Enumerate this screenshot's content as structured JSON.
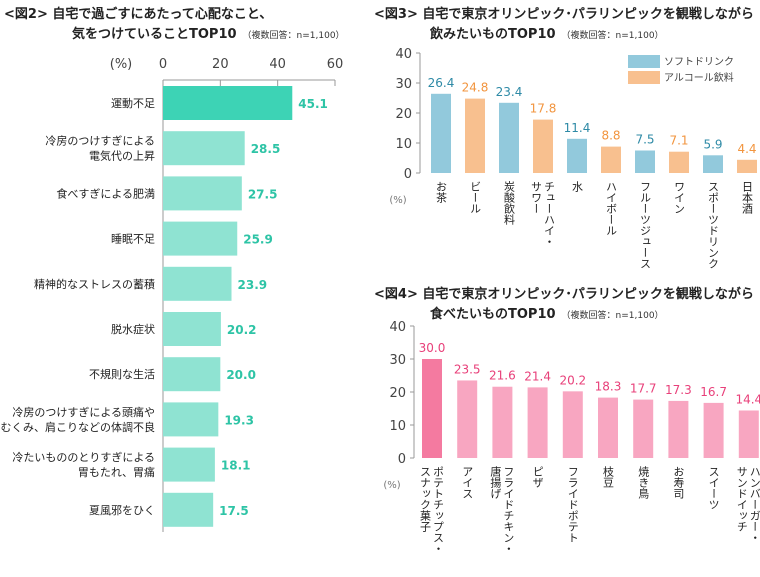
{
  "chart_data": [
    {
      "type": "bar",
      "orientation": "horizontal",
      "title": "<図2> 自宅で過ごすにあたって心配なこと、",
      "title2": "気をつけていることTOP10",
      "subtitle": "（複数回答：n=1,100）",
      "unit": "(%)",
      "xlim": [
        0,
        60
      ],
      "ticks": [
        "0",
        "20",
        "40",
        "60"
      ],
      "categories": [
        "運動不足",
        "冷房のつけすぎによる\n電気代の上昇",
        "食べすぎによる肥満",
        "睡眠不足",
        "精神的なストレスの蓄積",
        "脱水症状",
        "不規則な生活",
        "冷房のつけすぎによる頭痛や\nむくみ、肩こりなどの体調不良",
        "冷たいもののとりすぎによる\n胃もたれ、胃痛",
        "夏風邪をひく"
      ],
      "values": [
        45.1,
        28.5,
        27.5,
        25.9,
        23.9,
        20.2,
        20.0,
        19.3,
        18.1,
        17.5
      ],
      "value_labels": [
        "45.1",
        "28.5",
        "27.5",
        "25.9",
        "23.9",
        "20.2",
        "20.0",
        "19.3",
        "18.1",
        "17.5"
      ],
      "colors": {
        "highlight": "#3dd3b5",
        "bar": "#8fe3d2",
        "label": "#2ec4a6"
      }
    },
    {
      "type": "bar",
      "title": "<図3> 自宅で東京オリンピック･パラリンピックを観戦しながら",
      "title2": "飲みたいものTOP10",
      "subtitle": "（複数回答：n=1,100）",
      "unit": "(%)",
      "ylim": [
        0,
        40
      ],
      "ticks": [
        "0",
        "10",
        "20",
        "30",
        "40"
      ],
      "categories": [
        "お茶",
        "ビール",
        "炭酸飲料",
        "チューハイ・サワー",
        "水",
        "ハイボール",
        "フルーツジュース",
        "ワイン",
        "スポーツドリンク",
        "日本酒"
      ],
      "values": [
        26.4,
        24.8,
        23.4,
        17.8,
        11.4,
        8.8,
        7.5,
        7.1,
        5.9,
        4.4
      ],
      "value_labels": [
        "26.4",
        "24.8",
        "23.4",
        "17.8",
        "11.4",
        "8.8",
        "7.5",
        "7.1",
        "5.9",
        "4.4"
      ],
      "groups": [
        0,
        1,
        0,
        1,
        0,
        1,
        0,
        1,
        0,
        1
      ],
      "series": [
        {
          "name": "ソフトドリンク",
          "color": "#92c9dc",
          "label_color": "#2e8aa6"
        },
        {
          "name": "アルコール飲料",
          "color": "#f8c08f",
          "label_color": "#f2953f"
        }
      ],
      "legend": "top-right"
    },
    {
      "type": "bar",
      "title": "<図4> 自宅で東京オリンピック･パラリンピックを観戦しながら",
      "title2": "食べたいものTOP10",
      "subtitle": "（複数回答：n=1,100）",
      "unit": "(%)",
      "ylim": [
        0,
        40
      ],
      "ticks": [
        "0",
        "10",
        "20",
        "30",
        "40"
      ],
      "categories": [
        "ポテトチップス・スナック菓子",
        "アイス",
        "フライドチキン・唐揚げ",
        "ピザ",
        "フライドポテト",
        "枝豆",
        "焼き鳥",
        "お寿司",
        "スイーツ",
        "ハンバーガー・サンドイッチ"
      ],
      "values": [
        30.0,
        23.5,
        21.6,
        21.4,
        20.2,
        18.3,
        17.7,
        17.3,
        16.7,
        14.4
      ],
      "value_labels": [
        "30.0",
        "23.5",
        "21.6",
        "21.4",
        "20.2",
        "18.3",
        "17.7",
        "17.3",
        "16.7",
        "14.4"
      ],
      "colors": {
        "highlight": "#f47aa0",
        "bar": "#f8a6c1",
        "label": "#e8407a"
      }
    }
  ]
}
